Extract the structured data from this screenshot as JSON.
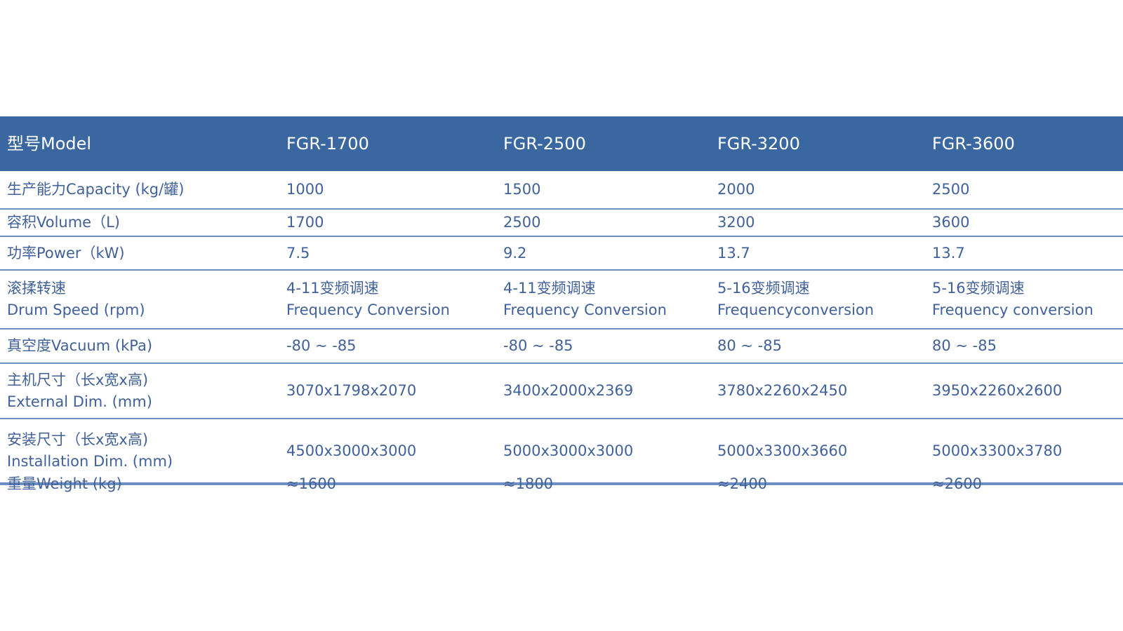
{
  "table": {
    "header": [
      "型号Model",
      "FGR-1700",
      "FGR-2500",
      "FGR-3200",
      "FGR-3600"
    ],
    "rows": [
      {
        "label": [
          "生产能力Capacity (kg/罐)"
        ],
        "values": [
          [
            "1000"
          ],
          [
            "1500"
          ],
          [
            "2000"
          ],
          [
            "2500"
          ]
        ]
      },
      {
        "label": [
          "容积Volume（L)"
        ],
        "values": [
          [
            "1700"
          ],
          [
            "2500"
          ],
          [
            "3200"
          ],
          [
            "3600"
          ]
        ]
      },
      {
        "label": [
          "功率Power（kW)"
        ],
        "values": [
          [
            "7.5"
          ],
          [
            "9.2"
          ],
          [
            "13.7"
          ],
          [
            "13.7"
          ]
        ]
      },
      {
        "label": [
          "滚揉转速",
          "Drum Speed (rpm)"
        ],
        "values": [
          [
            "4-11变频调速",
            "Frequency Conversion"
          ],
          [
            "4-11变频调速",
            "Frequency Conversion"
          ],
          [
            "5-16变频调速",
            "Frequencyconversion"
          ],
          [
            "5-16变频调速",
            "Frequency conversion"
          ]
        ]
      },
      {
        "label": [
          "真空度Vacuum (kPa)"
        ],
        "values": [
          [
            "-80 ~ -85"
          ],
          [
            "-80 ~ -85"
          ],
          [
            "80 ~ -85"
          ],
          [
            "80 ~ -85"
          ]
        ]
      },
      {
        "label": [
          "主机尺寸（长x宽x高)",
          "External Dim. (mm)"
        ],
        "values": [
          [
            "3070x1798x2070"
          ],
          [
            "3400x2000x2369"
          ],
          [
            "3780x2260x2450"
          ],
          [
            "3950x2260x2600"
          ]
        ]
      },
      {
        "label": [
          "安装尺寸（长x宽x高)",
          "Installation Dim. (mm)"
        ],
        "values": [
          [
            "4500x3000x3000"
          ],
          [
            "5000x3000x3000"
          ],
          [
            "5000x3300x3660"
          ],
          [
            "5000x3300x3780"
          ]
        ]
      },
      {
        "label": [
          "重量Weight (kg)"
        ],
        "values": [
          [
            "≈1600"
          ],
          [
            "≈1800"
          ],
          [
            "≈2400"
          ],
          [
            "≈2600"
          ]
        ]
      }
    ]
  },
  "colors": {
    "header_bg": "#3a67a0",
    "text": "#41619a",
    "rule": "#6d8ec2"
  }
}
